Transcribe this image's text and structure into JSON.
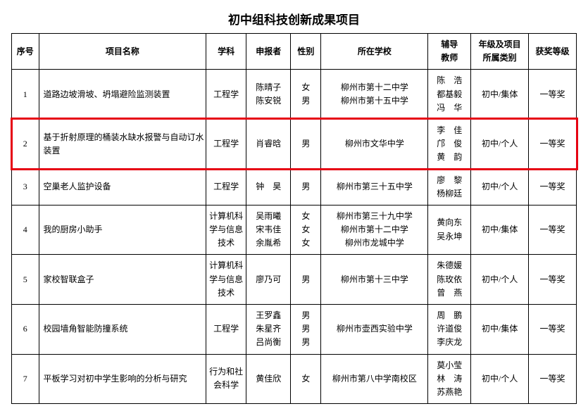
{
  "title": "初中组科技创新成果项目",
  "headers": {
    "no": "序号",
    "name": "项目名称",
    "subject": "学科",
    "declarant": "申报者",
    "gender": "性别",
    "school": "所在学校",
    "teacher": "辅导\n教师",
    "category": "年级及项目\n所属类别",
    "award": "获奖等级"
  },
  "rows": [
    {
      "no": "1",
      "name": "道路边坡滑坡、坍塌避险监测装置",
      "subject": "工程学",
      "declarant": "陈晴子\n陈安锐",
      "gender": "女\n男",
      "school": "柳州市第十二中学\n柳州市第十五中学",
      "teacher": "陈　浩\n都基毅\n冯　华",
      "category": "初中/集体",
      "award": "一等奖"
    },
    {
      "no": "2",
      "name": "基于折射原理的桶装水缺水报警与自动订水装置",
      "subject": "工程学",
      "declarant": "肖睿晗",
      "gender": "男",
      "school": "柳州市文华中学",
      "teacher": "李　佳\n邝　俊\n黄　韵",
      "category": "初中/个人",
      "award": "一等奖"
    },
    {
      "no": "3",
      "name": "空巢老人监护设备",
      "subject": "工程学",
      "declarant": "钟　昊",
      "gender": "男",
      "school": "柳州市第三十五中学",
      "teacher": "廖　黎\n杨柳廷",
      "category": "初中/个人",
      "award": "一等奖"
    },
    {
      "no": "4",
      "name": "我的厨房小助手",
      "subject": "计算机科学与信息技术",
      "declarant": "吴雨曦\n宋韦佳\n余胤希",
      "gender": "女\n女\n女",
      "school": "柳州市第三十九中学\n柳州市第十二中学\n柳州市龙城中学",
      "teacher": "黄向东\n吴永坤",
      "category": "初中/集体",
      "award": "一等奖"
    },
    {
      "no": "5",
      "name": "家校智联盒子",
      "subject": "计算机科学与信息技术",
      "declarant": "廖乃可",
      "gender": "男",
      "school": "柳州市第十三中学",
      "teacher": "朱德媛\n陈玫依\n曾　燕",
      "category": "初中/个人",
      "award": "一等奖"
    },
    {
      "no": "6",
      "name": "校园墙角智能防撞系统",
      "subject": "工程学",
      "declarant": "王罗鑫\n朱星齐\n吕尚衡",
      "gender": "男\n男\n男",
      "school": "柳州市壶西实验中学",
      "teacher": "周　鹏\n许道俊\n李庆龙",
      "category": "初中/集体",
      "award": "一等奖"
    },
    {
      "no": "7",
      "name": "平板学习对初中学生影响的分析与研究",
      "subject": "行为和社会科学",
      "declarant": "黄佳欣",
      "gender": "女",
      "school": "柳州市第八中学南校区",
      "teacher": "莫小莹\n林　涛\n苏燕艳",
      "category": "初中/个人",
      "award": "一等奖"
    }
  ],
  "highlight": {
    "row_index": 1,
    "border_color": "#e60012"
  }
}
